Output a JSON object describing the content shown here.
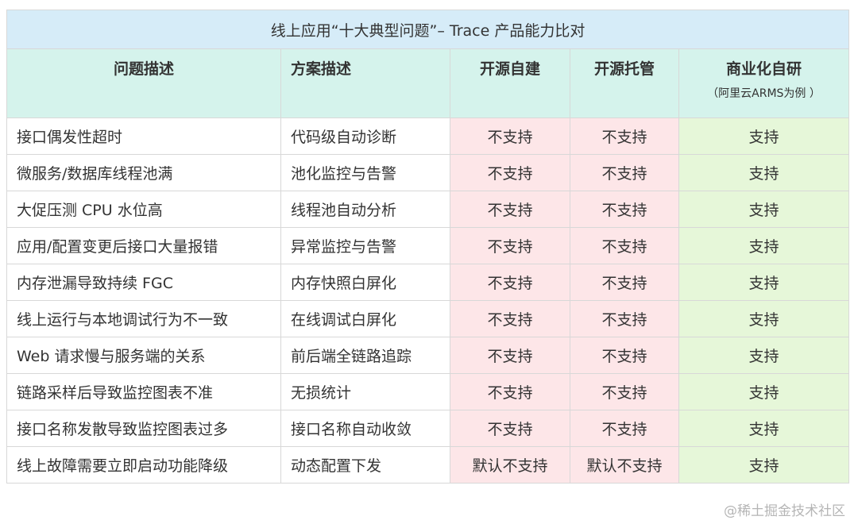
{
  "title": "线上应用“十大典型问题”– Trace 产品能力比对",
  "headers": {
    "problem": "问题描述",
    "solution": "方案描述",
    "c1": "开源自建",
    "c2": "开源托管",
    "c3": "商业化自研",
    "c3_sub": "（阿里云ARMS为例 ）"
  },
  "rows": [
    {
      "problem": "接口偶发性超时",
      "solution": "代码级自动诊断",
      "c1": "不支持",
      "c2": "不支持",
      "c3": "支持"
    },
    {
      "problem": "微服务/数据库线程池满",
      "solution": "池化监控与告警",
      "c1": "不支持",
      "c2": "不支持",
      "c3": "支持"
    },
    {
      "problem": "大促压测 CPU 水位高",
      "solution": "线程池自动分析",
      "c1": "不支持",
      "c2": "不支持",
      "c3": "支持"
    },
    {
      "problem": "应用/配置变更后接口大量报错",
      "solution": "异常监控与告警",
      "c1": "不支持",
      "c2": "不支持",
      "c3": "支持"
    },
    {
      "problem": "内存泄漏导致持续 FGC",
      "solution": "内存快照白屏化",
      "c1": "不支持",
      "c2": "不支持",
      "c3": "支持"
    },
    {
      "problem": "线上运行与本地调试行为不一致",
      "solution": "在线调试白屏化",
      "c1": "不支持",
      "c2": "不支持",
      "c3": "支持"
    },
    {
      "problem": "Web 请求慢与服务端的关系",
      "solution": "前后端全链路追踪",
      "c1": "不支持",
      "c2": "不支持",
      "c3": "支持"
    },
    {
      "problem": "链路采样后导致监控图表不准",
      "solution": "无损统计",
      "c1": "不支持",
      "c2": "不支持",
      "c3": "支持"
    },
    {
      "problem": "接口名称发散导致监控图表过多",
      "solution": "接口名称自动收敛",
      "c1": "不支持",
      "c2": "不支持",
      "c3": "支持"
    },
    {
      "problem": "线上故障需要立即启动功能降级",
      "solution": "动态配置下发",
      "c1": "默认不支持",
      "c2": "默认不支持",
      "c3": "支持"
    }
  ],
  "watermark": "@稀土掘金技术社区",
  "colors": {
    "title_bg": "#d6ecf8",
    "header_bg": "#d5f3ec",
    "unsupported_bg": "#fde6e8",
    "supported_bg": "#e6f7d9"
  }
}
